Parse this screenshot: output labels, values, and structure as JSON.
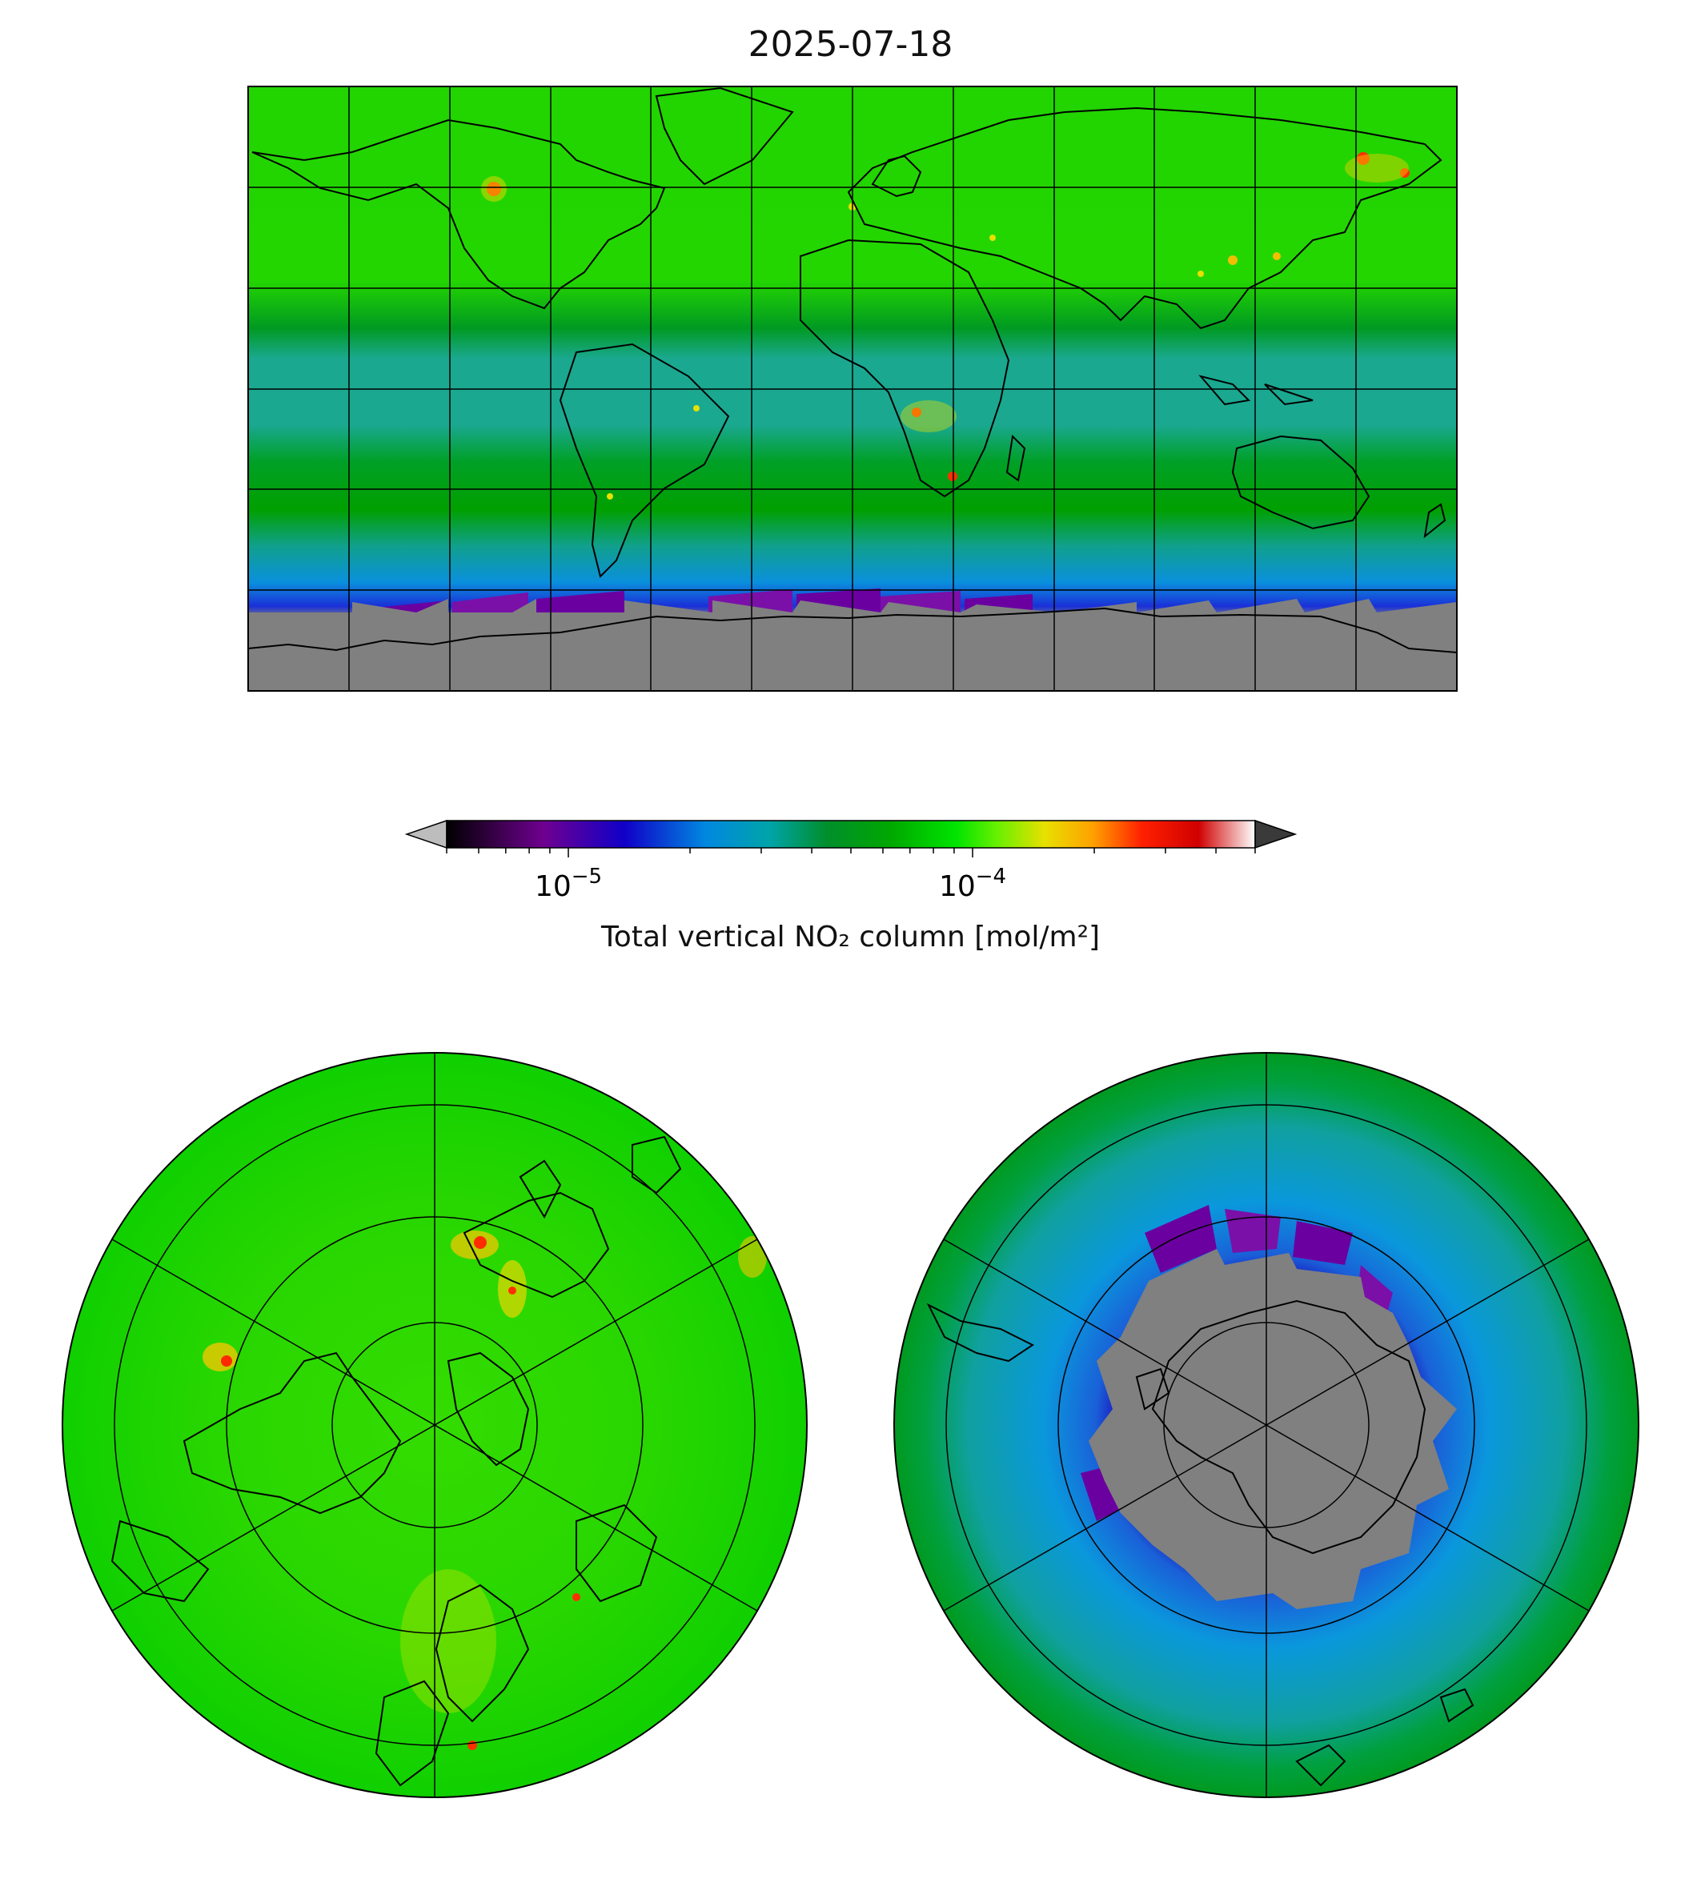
{
  "figure": {
    "title": "2025-07-18"
  },
  "colorbar": {
    "label": "Total vertical NO₂ column [mol/m²]",
    "scale": "log",
    "range": [
      5e-06,
      0.0005
    ],
    "extend": "both",
    "under_color": "#bdbdbd",
    "over_color": "#3a3a3a",
    "ticks": [
      {
        "value": 1e-05,
        "label_base": "10",
        "label_exp": "−5"
      },
      {
        "value": 0.0001,
        "label_base": "10",
        "label_exp": "−4"
      }
    ],
    "stops": [
      {
        "t": 0.0,
        "color": "#000000"
      },
      {
        "t": 0.12,
        "color": "#6f0090"
      },
      {
        "t": 0.22,
        "color": "#1000c8"
      },
      {
        "t": 0.32,
        "color": "#0088e0"
      },
      {
        "t": 0.4,
        "color": "#00a4a8"
      },
      {
        "t": 0.47,
        "color": "#008e2c"
      },
      {
        "t": 0.55,
        "color": "#00a800"
      },
      {
        "t": 0.63,
        "color": "#00e400"
      },
      {
        "t": 0.68,
        "color": "#66f000"
      },
      {
        "t": 0.74,
        "color": "#e8e000"
      },
      {
        "t": 0.8,
        "color": "#ffa000"
      },
      {
        "t": 0.86,
        "color": "#ff2000"
      },
      {
        "t": 0.93,
        "color": "#d00000"
      },
      {
        "t": 1.0,
        "color": "#ffffff"
      }
    ]
  },
  "maps": {
    "global": {
      "projection": "PlateCarree",
      "no_data_color": "#808080"
    },
    "north_polar": {
      "projection": "NorthPolarStereo"
    },
    "south_polar": {
      "projection": "SouthPolarStereo",
      "no_data_color": "#808080"
    }
  }
}
